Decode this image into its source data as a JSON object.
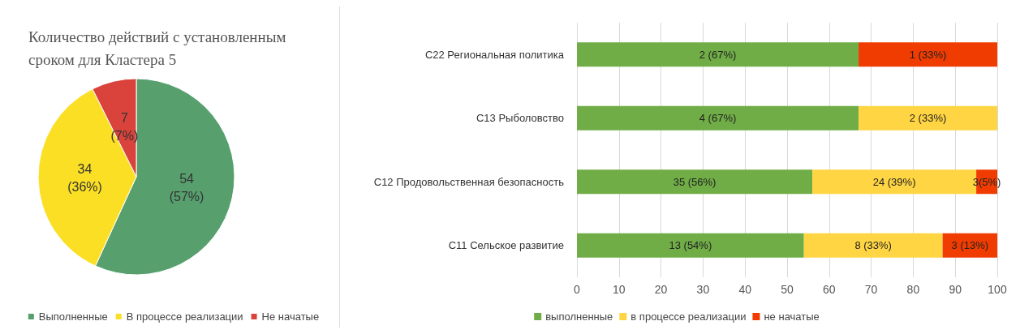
{
  "chart_data": [
    {
      "type": "pie",
      "title": "Количество действий с установленным\nсроком для Кластера 5",
      "categories": [
        "Выполненные",
        "В процессе реализации",
        "Не начатые"
      ],
      "values": [
        54,
        34,
        7
      ],
      "colors": [
        "#57a06e",
        "#fbdf24",
        "#d9433b"
      ],
      "value_labels": [
        "54\n(57%)",
        "34\n(36%)",
        "7\n(7%)"
      ],
      "legend": "bottom"
    },
    {
      "type": "bar",
      "orientation": "horizontal",
      "stacked": true,
      "categories": [
        "C22 Региональная политика",
        "C13 Рыболовство",
        "C12 Продовольственная безопасность",
        "C11 Сельское развитие"
      ],
      "series": [
        {
          "name": "выполненные",
          "color": "#70ad47",
          "values": [
            67,
            67,
            56,
            54
          ],
          "value_labels": [
            "2 (67%)",
            "4 (67%)",
            "35 (56%)",
            "13 (54%)"
          ]
        },
        {
          "name": "в процессе реализации",
          "color": "#ffd543",
          "values": [
            null,
            33,
            39,
            33
          ],
          "value_labels": [
            null,
            "2 (33%)",
            "24 (39%)",
            "8 (33%)"
          ]
        },
        {
          "name": "не начатые",
          "color": "#f03c00",
          "values": [
            33,
            null,
            5,
            13
          ],
          "value_labels": [
            "1 (33%)",
            null,
            "3(5%)",
            "3 (13%)"
          ]
        }
      ],
      "xlim": [
        0,
        100
      ],
      "xticks": [
        0,
        10,
        20,
        30,
        40,
        50,
        60,
        70,
        80,
        90,
        100
      ],
      "grid": "x",
      "legend": "bottom"
    }
  ]
}
